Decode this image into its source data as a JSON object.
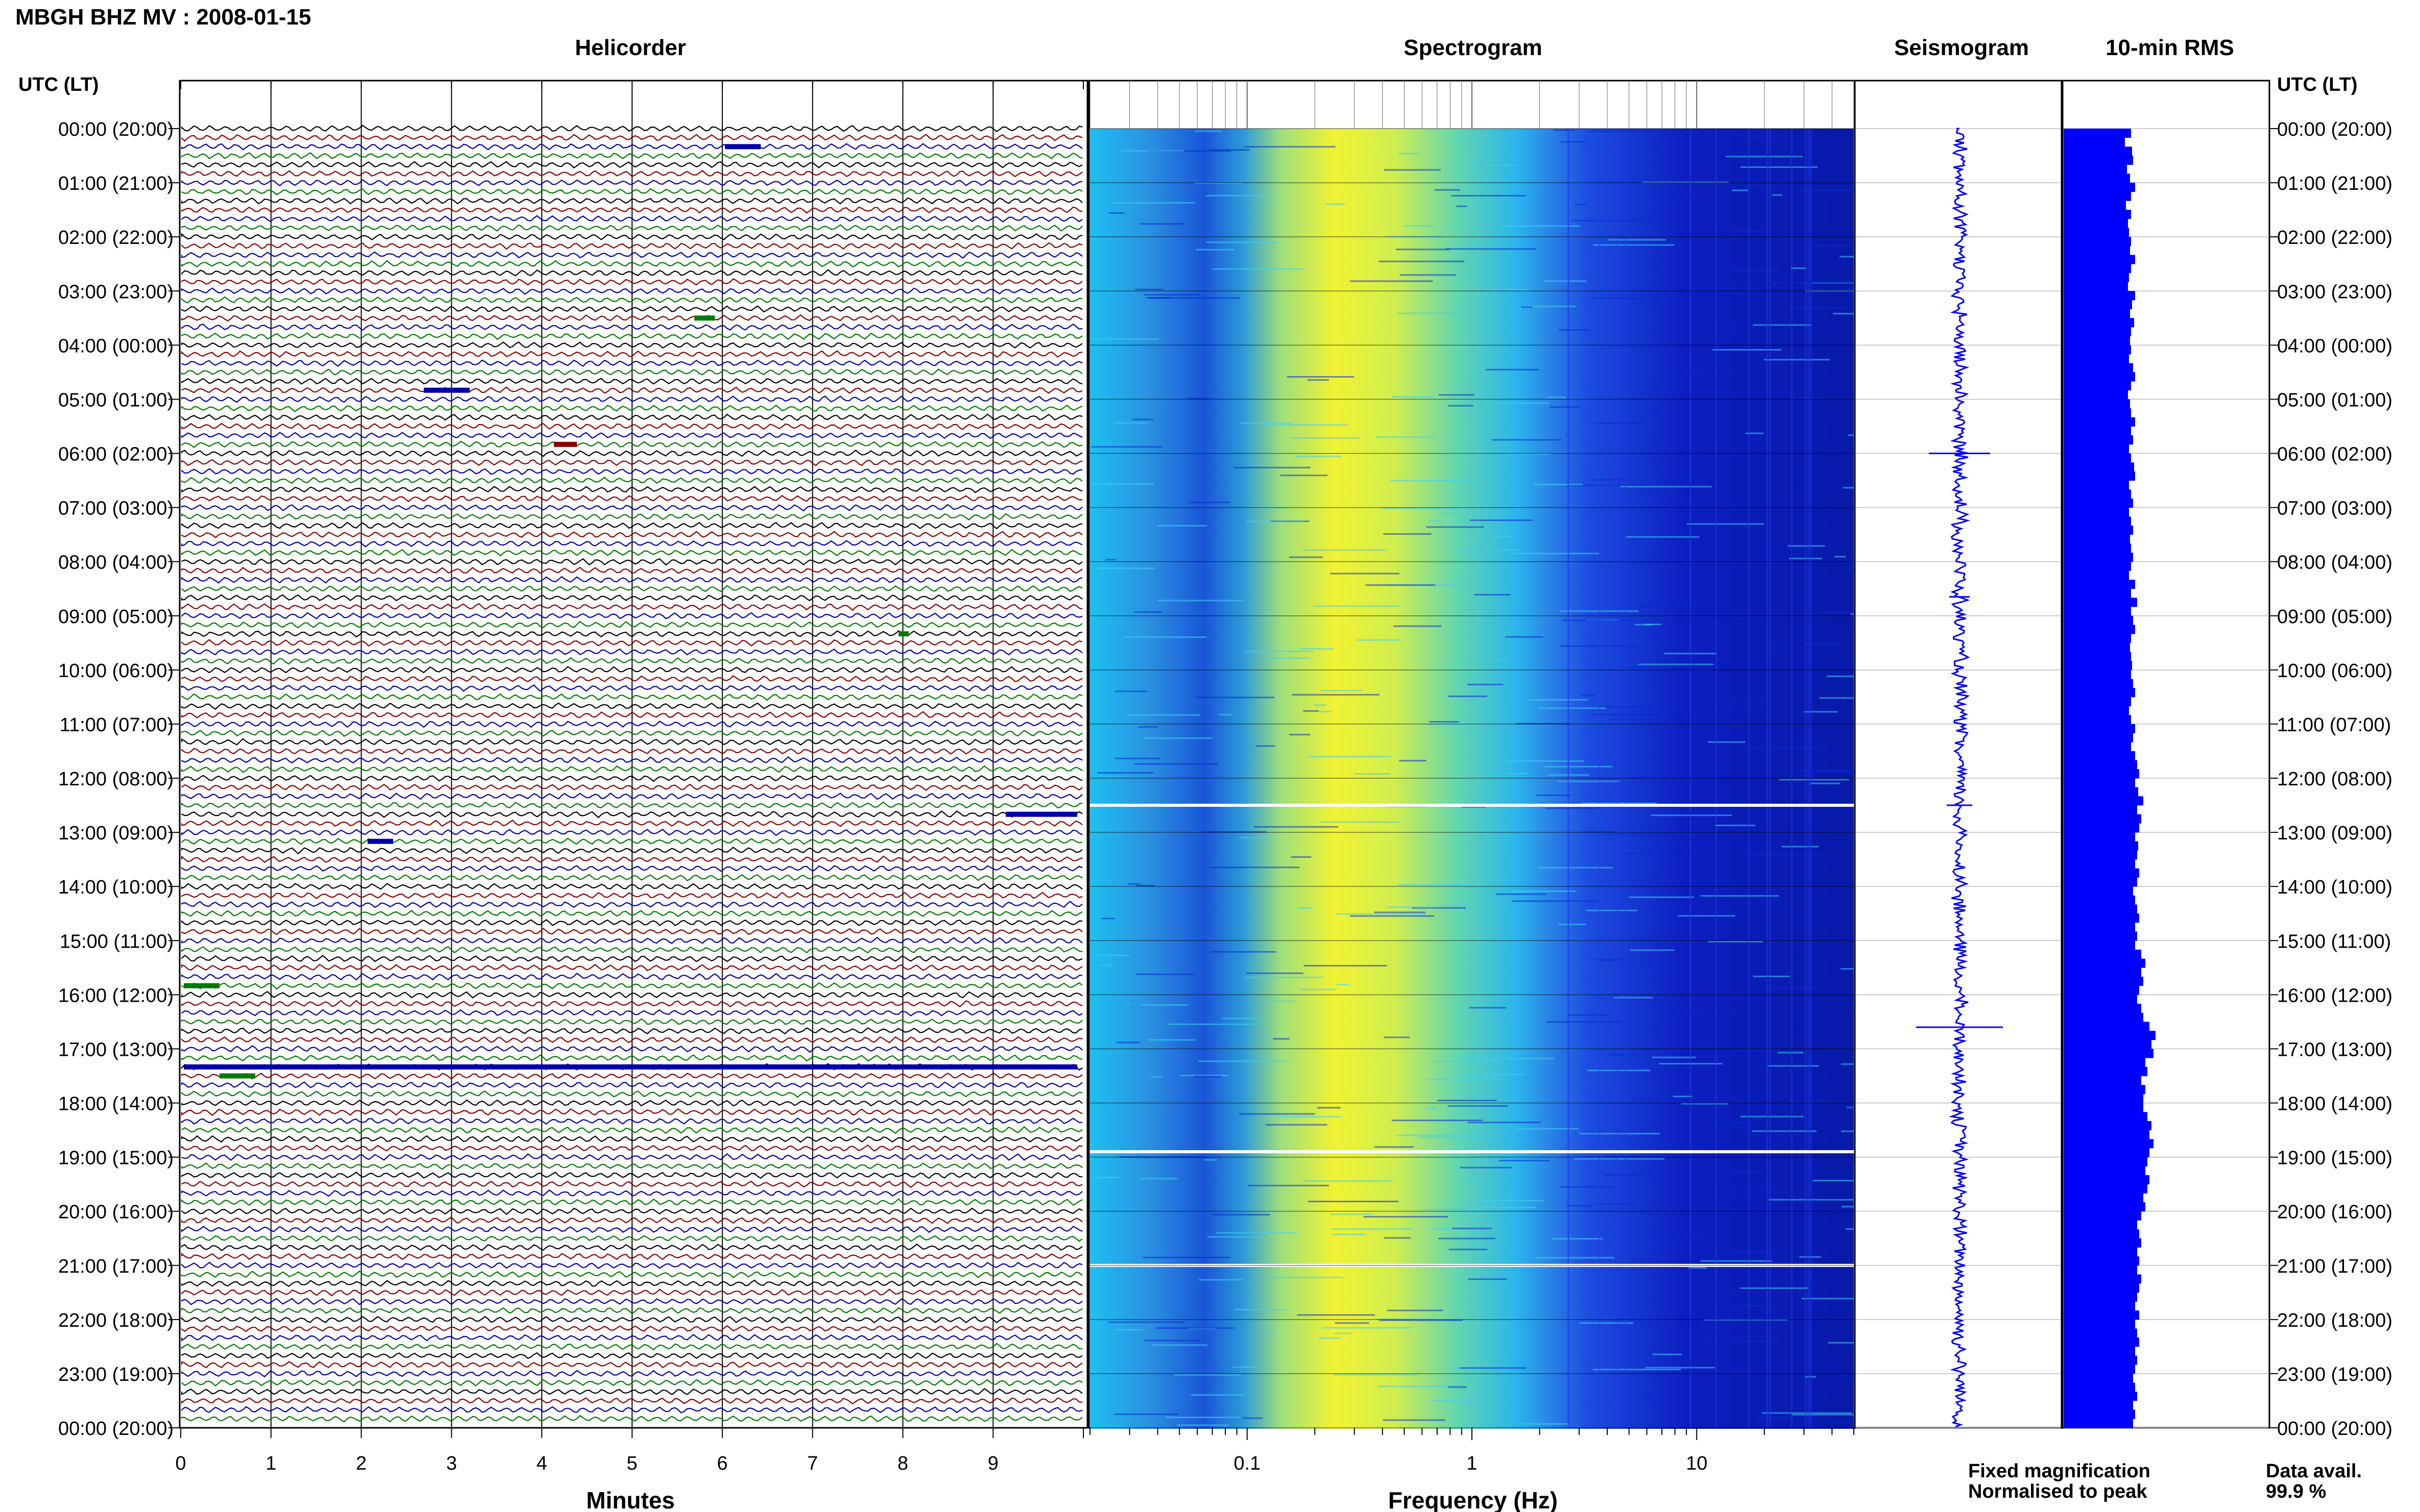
{
  "page_title": "MBGH BHZ MV : 2008-01-15",
  "panel_titles": {
    "helicorder": "Helicorder",
    "spectrogram": "Spectrogram",
    "seismogram": "Seismogram",
    "rms": "10-min RMS"
  },
  "time_axis_header_left": "UTC (LT)",
  "time_axis_header_right": "UTC (LT)",
  "hour_labels": [
    "00:00 (20:00)",
    "01:00 (21:00)",
    "02:00 (22:00)",
    "03:00 (23:00)",
    "04:00 (00:00)",
    "05:00 (01:00)",
    "06:00 (02:00)",
    "07:00 (03:00)",
    "08:00 (04:00)",
    "09:00 (05:00)",
    "10:00 (06:00)",
    "11:00 (07:00)",
    "12:00 (08:00)",
    "13:00 (09:00)",
    "14:00 (10:00)",
    "15:00 (11:00)",
    "16:00 (12:00)",
    "17:00 (13:00)",
    "18:00 (14:00)",
    "19:00 (15:00)",
    "20:00 (16:00)",
    "21:00 (17:00)",
    "22:00 (18:00)",
    "23:00 (19:00)",
    "00:00 (20:00)"
  ],
  "helicorder": {
    "xlabel": "Minutes",
    "xticks": [
      "0",
      "1",
      "2",
      "3",
      "4",
      "5",
      "6",
      "7",
      "8",
      "9"
    ],
    "lines_per_hour": 6,
    "trace_colors": [
      "#000000",
      "#8b0000",
      "#0000aa",
      "#007a00"
    ]
  },
  "spectrogram": {
    "xlabel": "Frequency (Hz)",
    "xticks": [
      "0.1",
      "1",
      "10"
    ],
    "xscale": "log",
    "xlim": [
      0.02,
      50
    ],
    "data_gaps_utc_hours": [
      12.5,
      18.9,
      21.0
    ]
  },
  "legend": {
    "fixed": "Fixed magnification",
    "normalised": "Normalised to peak",
    "fixed_color": "#0000ff",
    "normalised_color": "#ff0000"
  },
  "data_avail": {
    "label": "Data avail.",
    "value": "99.9 %"
  },
  "chart_data": {
    "type": "bar",
    "title": "10-min RMS",
    "note_series": "relative RMS amplitude per 10-minute window, 00:00 to 24:00 UTC",
    "values": [
      0.66,
      0.6,
      0.67,
      0.68,
      0.62,
      0.65,
      0.7,
      0.66,
      0.61,
      0.66,
      0.63,
      0.64,
      0.66,
      0.65,
      0.7,
      0.66,
      0.64,
      0.63,
      0.7,
      0.67,
      0.65,
      0.69,
      0.66,
      0.65,
      0.66,
      0.64,
      0.68,
      0.7,
      0.66,
      0.63,
      0.65,
      0.66,
      0.7,
      0.66,
      0.68,
      0.64,
      0.66,
      0.69,
      0.7,
      0.64,
      0.66,
      0.68,
      0.64,
      0.66,
      0.68,
      0.65,
      0.66,
      0.68,
      0.66,
      0.64,
      0.7,
      0.66,
      0.72,
      0.66,
      0.68,
      0.7,
      0.66,
      0.65,
      0.66,
      0.67,
      0.66,
      0.68,
      0.7,
      0.66,
      0.64,
      0.66,
      0.7,
      0.68,
      0.66,
      0.7,
      0.72,
      0.74,
      0.7,
      0.73,
      0.78,
      0.72,
      0.76,
      0.74,
      0.7,
      0.73,
      0.72,
      0.7,
      0.74,
      0.72,
      0.68,
      0.7,
      0.72,
      0.74,
      0.7,
      0.72,
      0.7,
      0.76,
      0.8,
      0.76,
      0.78,
      0.74,
      0.72,
      0.76,
      0.78,
      0.84,
      0.9,
      0.86,
      0.88,
      0.8,
      0.82,
      0.76,
      0.8,
      0.78,
      0.78,
      0.82,
      0.86,
      0.84,
      0.88,
      0.84,
      0.82,
      0.8,
      0.84,
      0.82,
      0.78,
      0.8,
      0.76,
      0.72,
      0.74,
      0.76,
      0.72,
      0.74,
      0.72,
      0.76,
      0.74,
      0.72,
      0.7,
      0.74,
      0.7,
      0.72,
      0.74,
      0.7,
      0.72,
      0.7,
      0.68,
      0.7,
      0.72,
      0.68,
      0.7,
      0.68
    ],
    "xlim": [
      0,
      1
    ],
    "ylim_utc_hours": [
      0,
      24
    ]
  }
}
